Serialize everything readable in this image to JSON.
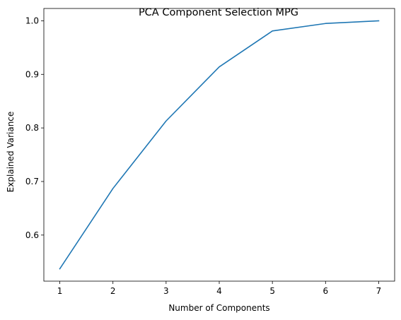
{
  "chart_data": {
    "type": "line",
    "title": "PCA Component Selection MPG",
    "xlabel": "Number of Components",
    "ylabel": "Explained Variance",
    "x": [
      1,
      2,
      3,
      4,
      5,
      6,
      7
    ],
    "series": [
      {
        "values": [
          0.537,
          0.687,
          0.813,
          0.914,
          0.981,
          0.995,
          1.0
        ],
        "color": "#1f77b4"
      }
    ],
    "x_ticks": [
      "1",
      "2",
      "3",
      "4",
      "5",
      "6",
      "7"
    ],
    "y_ticks": [
      "0.6",
      "0.7",
      "0.8",
      "0.9",
      "1.0"
    ],
    "xlim": [
      0.7,
      7.3
    ],
    "ylim": [
      0.514,
      1.023
    ],
    "grid": false,
    "legend": "none"
  }
}
